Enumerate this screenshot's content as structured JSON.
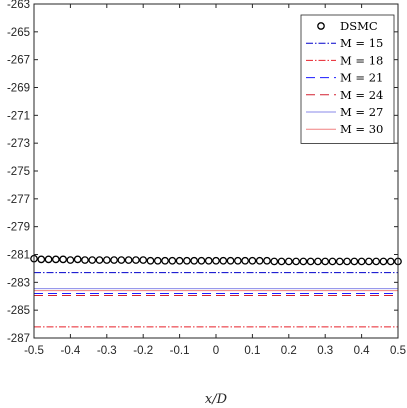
{
  "chart_data": {
    "type": "line",
    "title": "",
    "xlabel": "x/D",
    "ylabel": "",
    "xlim": [
      -0.5,
      0.5
    ],
    "ylim": [
      -287,
      -263
    ],
    "x_ticks": [
      -0.5,
      -0.4,
      -0.3,
      -0.2,
      -0.1,
      0,
      0.1,
      0.2,
      0.3,
      0.4,
      0.5
    ],
    "y_ticks": [
      -263,
      -265,
      -267,
      -269,
      -271,
      -273,
      -275,
      -277,
      -279,
      -281,
      -283,
      -285,
      -287
    ],
    "x_tick_labels": [
      "-0.5",
      "-0.4",
      "-0.3",
      "-0.2",
      "-0.1",
      "0",
      "0.1",
      "0.2",
      "0.3",
      "0.4",
      "0.5"
    ],
    "y_tick_labels": [
      "-263",
      "-265",
      "-267",
      "-269",
      "-271",
      "-273",
      "-275",
      "-277",
      "-279",
      "-281",
      "-283",
      "-285",
      "-287"
    ],
    "grid": false,
    "legend_position": "top-right",
    "series": [
      {
        "name": "DSMC",
        "style": "markers",
        "marker": "circle",
        "color": "#000000",
        "x": [
          -0.5,
          -0.48,
          -0.46,
          -0.44,
          -0.42,
          -0.4,
          -0.38,
          -0.36,
          -0.34,
          -0.32,
          -0.3,
          -0.28,
          -0.26,
          -0.24,
          -0.22,
          -0.2,
          -0.18,
          -0.16,
          -0.14,
          -0.12,
          -0.1,
          -0.08,
          -0.06,
          -0.04,
          -0.02,
          0,
          0.02,
          0.04,
          0.06,
          0.08,
          0.1,
          0.12,
          0.14,
          0.16,
          0.18,
          0.2,
          0.22,
          0.24,
          0.26,
          0.28,
          0.3,
          0.32,
          0.34,
          0.36,
          0.38,
          0.4,
          0.42,
          0.44,
          0.46,
          0.48,
          0.5
        ],
        "y": [
          -281.3,
          -281.35,
          -281.35,
          -281.35,
          -281.35,
          -281.4,
          -281.35,
          -281.4,
          -281.4,
          -281.4,
          -281.4,
          -281.4,
          -281.4,
          -281.4,
          -281.4,
          -281.4,
          -281.45,
          -281.45,
          -281.45,
          -281.45,
          -281.45,
          -281.45,
          -281.45,
          -281.45,
          -281.45,
          -281.45,
          -281.45,
          -281.45,
          -281.45,
          -281.45,
          -281.45,
          -281.45,
          -281.45,
          -281.5,
          -281.5,
          -281.5,
          -281.5,
          -281.5,
          -281.5,
          -281.5,
          -281.5,
          -281.5,
          -281.5,
          -281.5,
          -281.5,
          -281.5,
          -281.5,
          -281.5,
          -281.5,
          -281.5,
          -281.5
        ]
      },
      {
        "name": "M = 15",
        "style": "dashdot",
        "color": "#0000cc",
        "x": [
          -0.5,
          0.5
        ],
        "y": [
          -282.3,
          -282.3
        ]
      },
      {
        "name": "M = 18",
        "style": "dashdot",
        "color": "#e8202a",
        "x": [
          -0.5,
          0.5
        ],
        "y": [
          -286.2,
          -286.2
        ]
      },
      {
        "name": "M = 21",
        "style": "dashed",
        "color": "#1a1aff",
        "x": [
          -0.5,
          0.5
        ],
        "y": [
          -283.8,
          -283.8
        ]
      },
      {
        "name": "M = 24",
        "style": "dashed",
        "color": "#d42030",
        "x": [
          -0.5,
          0.5
        ],
        "y": [
          -283.95,
          -283.95
        ]
      },
      {
        "name": "M = 27",
        "style": "solid",
        "color": "#8a8ae8",
        "x": [
          -0.5,
          0.5
        ],
        "y": [
          -283.45,
          -283.45
        ]
      },
      {
        "name": "M = 30",
        "style": "solid",
        "color": "#f08080",
        "x": [
          -0.5,
          0.5
        ],
        "y": [
          -283.6,
          -283.6
        ]
      }
    ]
  }
}
